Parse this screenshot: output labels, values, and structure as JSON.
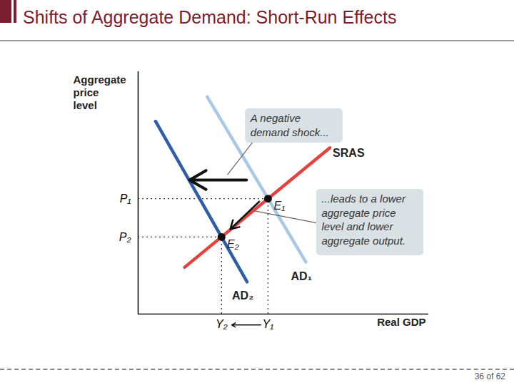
{
  "footer": "36 of 62",
  "chart_data": {
    "type": "line",
    "title": "Shifts of Aggregate Demand: Short-Run Effects",
    "x_label": "Real GDP",
    "y_label": "Aggregate price level",
    "xlim": [
      0,
      10
    ],
    "ylim": [
      0,
      10
    ],
    "xticks": [
      {
        "value": 2.87,
        "label": "Y₂"
      },
      {
        "value": 4.47,
        "label": "Y₁"
      }
    ],
    "yticks": [
      {
        "value": 3.18,
        "label": "P₂"
      },
      {
        "value": 4.76,
        "label": "P₁"
      }
    ],
    "grid": false,
    "series": [
      {
        "name": "AD₁",
        "color": "#a9c8e8",
        "x": [
          2.38,
          5.77
        ],
        "values": [
          8.96,
          2.15
        ]
      },
      {
        "name": "AD₂",
        "color": "#2f5ea8",
        "x": [
          0.6,
          3.75
        ],
        "values": [
          7.95,
          1.33
        ]
      },
      {
        "name": "SRAS",
        "color": "#e5413d",
        "x": [
          1.6,
          6.6
        ],
        "values": [
          1.93,
          6.86
        ]
      }
    ],
    "points": [
      {
        "name": "E₁",
        "x": 4.47,
        "y": 4.76
      },
      {
        "name": "E₂",
        "x": 2.87,
        "y": 3.18
      }
    ],
    "annotations": [
      "A negative demand shock...",
      "...leads to a lower aggregate price level and lower aggregate output."
    ]
  }
}
